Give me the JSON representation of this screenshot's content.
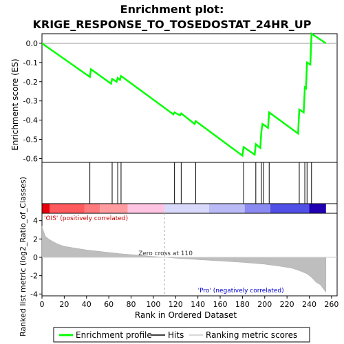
{
  "chart_data": {
    "type": "line",
    "title_line1": "Enrichment plot:",
    "title_line2": "KRIGE_RESPONSE_TO_TOSEDOSTAT_24HR_UP",
    "es_ylabel": "Enrichment score (ES)",
    "metric_ylabel": "Ranked list metric (log2_Ratio_of_Classes)",
    "xlabel": "Rank in Ordered Dataset",
    "xlim": [
      0,
      265
    ],
    "es_ylim": [
      -0.62,
      0.05
    ],
    "metric_ylim": [
      -4.2,
      4.8
    ],
    "x_ticks": [
      0,
      20,
      40,
      60,
      80,
      100,
      120,
      140,
      160,
      180,
      200,
      220,
      240,
      260
    ],
    "es_ticks": [
      0.0,
      -0.1,
      -0.2,
      -0.3,
      -0.4,
      -0.5,
      -0.6
    ],
    "es_tick_labels": [
      "0.0",
      "-0.1",
      "-0.2",
      "-0.3",
      "-0.4",
      "-0.5",
      "-0.6"
    ],
    "metric_ticks": [
      4,
      2,
      0,
      -2,
      -4
    ],
    "hits": [
      43,
      63,
      68,
      71,
      119,
      125,
      138,
      181,
      192,
      197,
      199,
      204,
      231,
      236,
      238,
      242
    ],
    "es_points": [
      [
        0,
        0.0
      ],
      [
        43,
        -0.175
      ],
      [
        44,
        -0.135
      ],
      [
        62,
        -0.21
      ],
      [
        63,
        -0.185
      ],
      [
        67,
        -0.2
      ],
      [
        68,
        -0.18
      ],
      [
        70,
        -0.19
      ],
      [
        71,
        -0.17
      ],
      [
        118,
        -0.37
      ],
      [
        119,
        -0.36
      ],
      [
        124,
        -0.375
      ],
      [
        125,
        -0.365
      ],
      [
        137,
        -0.42
      ],
      [
        138,
        -0.405
      ],
      [
        180,
        -0.585
      ],
      [
        181,
        -0.54
      ],
      [
        191,
        -0.58
      ],
      [
        192,
        -0.525
      ],
      [
        196,
        -0.545
      ],
      [
        197,
        -0.46
      ],
      [
        198,
        -0.42
      ],
      [
        203,
        -0.44
      ],
      [
        204,
        -0.36
      ],
      [
        230,
        -0.47
      ],
      [
        231,
        -0.345
      ],
      [
        235,
        -0.36
      ],
      [
        236,
        -0.23
      ],
      [
        237,
        -0.235
      ],
      [
        238,
        -0.1
      ],
      [
        241,
        -0.11
      ],
      [
        242,
        0.05
      ],
      [
        255,
        0.0
      ]
    ],
    "metric_curve": [
      [
        0,
        3.4
      ],
      [
        1,
        3.0
      ],
      [
        3,
        2.3
      ],
      [
        6,
        2.0
      ],
      [
        10,
        1.7
      ],
      [
        15,
        1.4
      ],
      [
        20,
        1.2
      ],
      [
        30,
        1.0
      ],
      [
        40,
        0.8
      ],
      [
        55,
        0.6
      ],
      [
        70,
        0.4
      ],
      [
        85,
        0.25
      ],
      [
        100,
        0.1
      ],
      [
        110,
        0.0
      ],
      [
        120,
        -0.1
      ],
      [
        140,
        -0.25
      ],
      [
        160,
        -0.4
      ],
      [
        180,
        -0.55
      ],
      [
        200,
        -0.75
      ],
      [
        215,
        -1.0
      ],
      [
        225,
        -1.2
      ],
      [
        232,
        -1.5
      ],
      [
        238,
        -1.8
      ],
      [
        242,
        -2.2
      ],
      [
        246,
        -2.7
      ],
      [
        250,
        -3.0
      ],
      [
        253,
        -3.5
      ],
      [
        255,
        -3.8
      ]
    ],
    "zero_cross_rank": 110,
    "zero_cross_label": "Zero cross at 110",
    "pos_label": "'OIS' (positively correlated)",
    "neg_label": "'Pro' (negatively correlated)",
    "colors": {
      "es_line": "#00ff00",
      "hits": "#000000",
      "metric_fill": "#bebebe",
      "pos_label": "#cc0000",
      "neg_label": "#0000cc",
      "zero_line": "#aaaaaa"
    },
    "heatmap_bands": [
      {
        "from": 0,
        "to": 7,
        "color": "#e8000a"
      },
      {
        "from": 7,
        "to": 38,
        "color": "#ff5a5e"
      },
      {
        "from": 38,
        "to": 52,
        "color": "#ff7a7d"
      },
      {
        "from": 52,
        "to": 77,
        "color": "#ff9ca0"
      },
      {
        "from": 77,
        "to": 110,
        "color": "#ffc4e2"
      },
      {
        "from": 110,
        "to": 150,
        "color": "#d9d9fb"
      },
      {
        "from": 150,
        "to": 182,
        "color": "#babaf7"
      },
      {
        "from": 182,
        "to": 205,
        "color": "#8a8af2"
      },
      {
        "from": 205,
        "to": 240,
        "color": "#5050e6"
      },
      {
        "from": 240,
        "to": 255,
        "color": "#2000b0"
      }
    ],
    "legend": [
      {
        "label": "Enrichment profile",
        "color": "#00ff00",
        "kind": "thick"
      },
      {
        "label": "Hits",
        "color": "#000000",
        "kind": "thin"
      },
      {
        "label": "Ranking metric scores",
        "color": "#cccccc",
        "kind": "thin"
      }
    ]
  }
}
